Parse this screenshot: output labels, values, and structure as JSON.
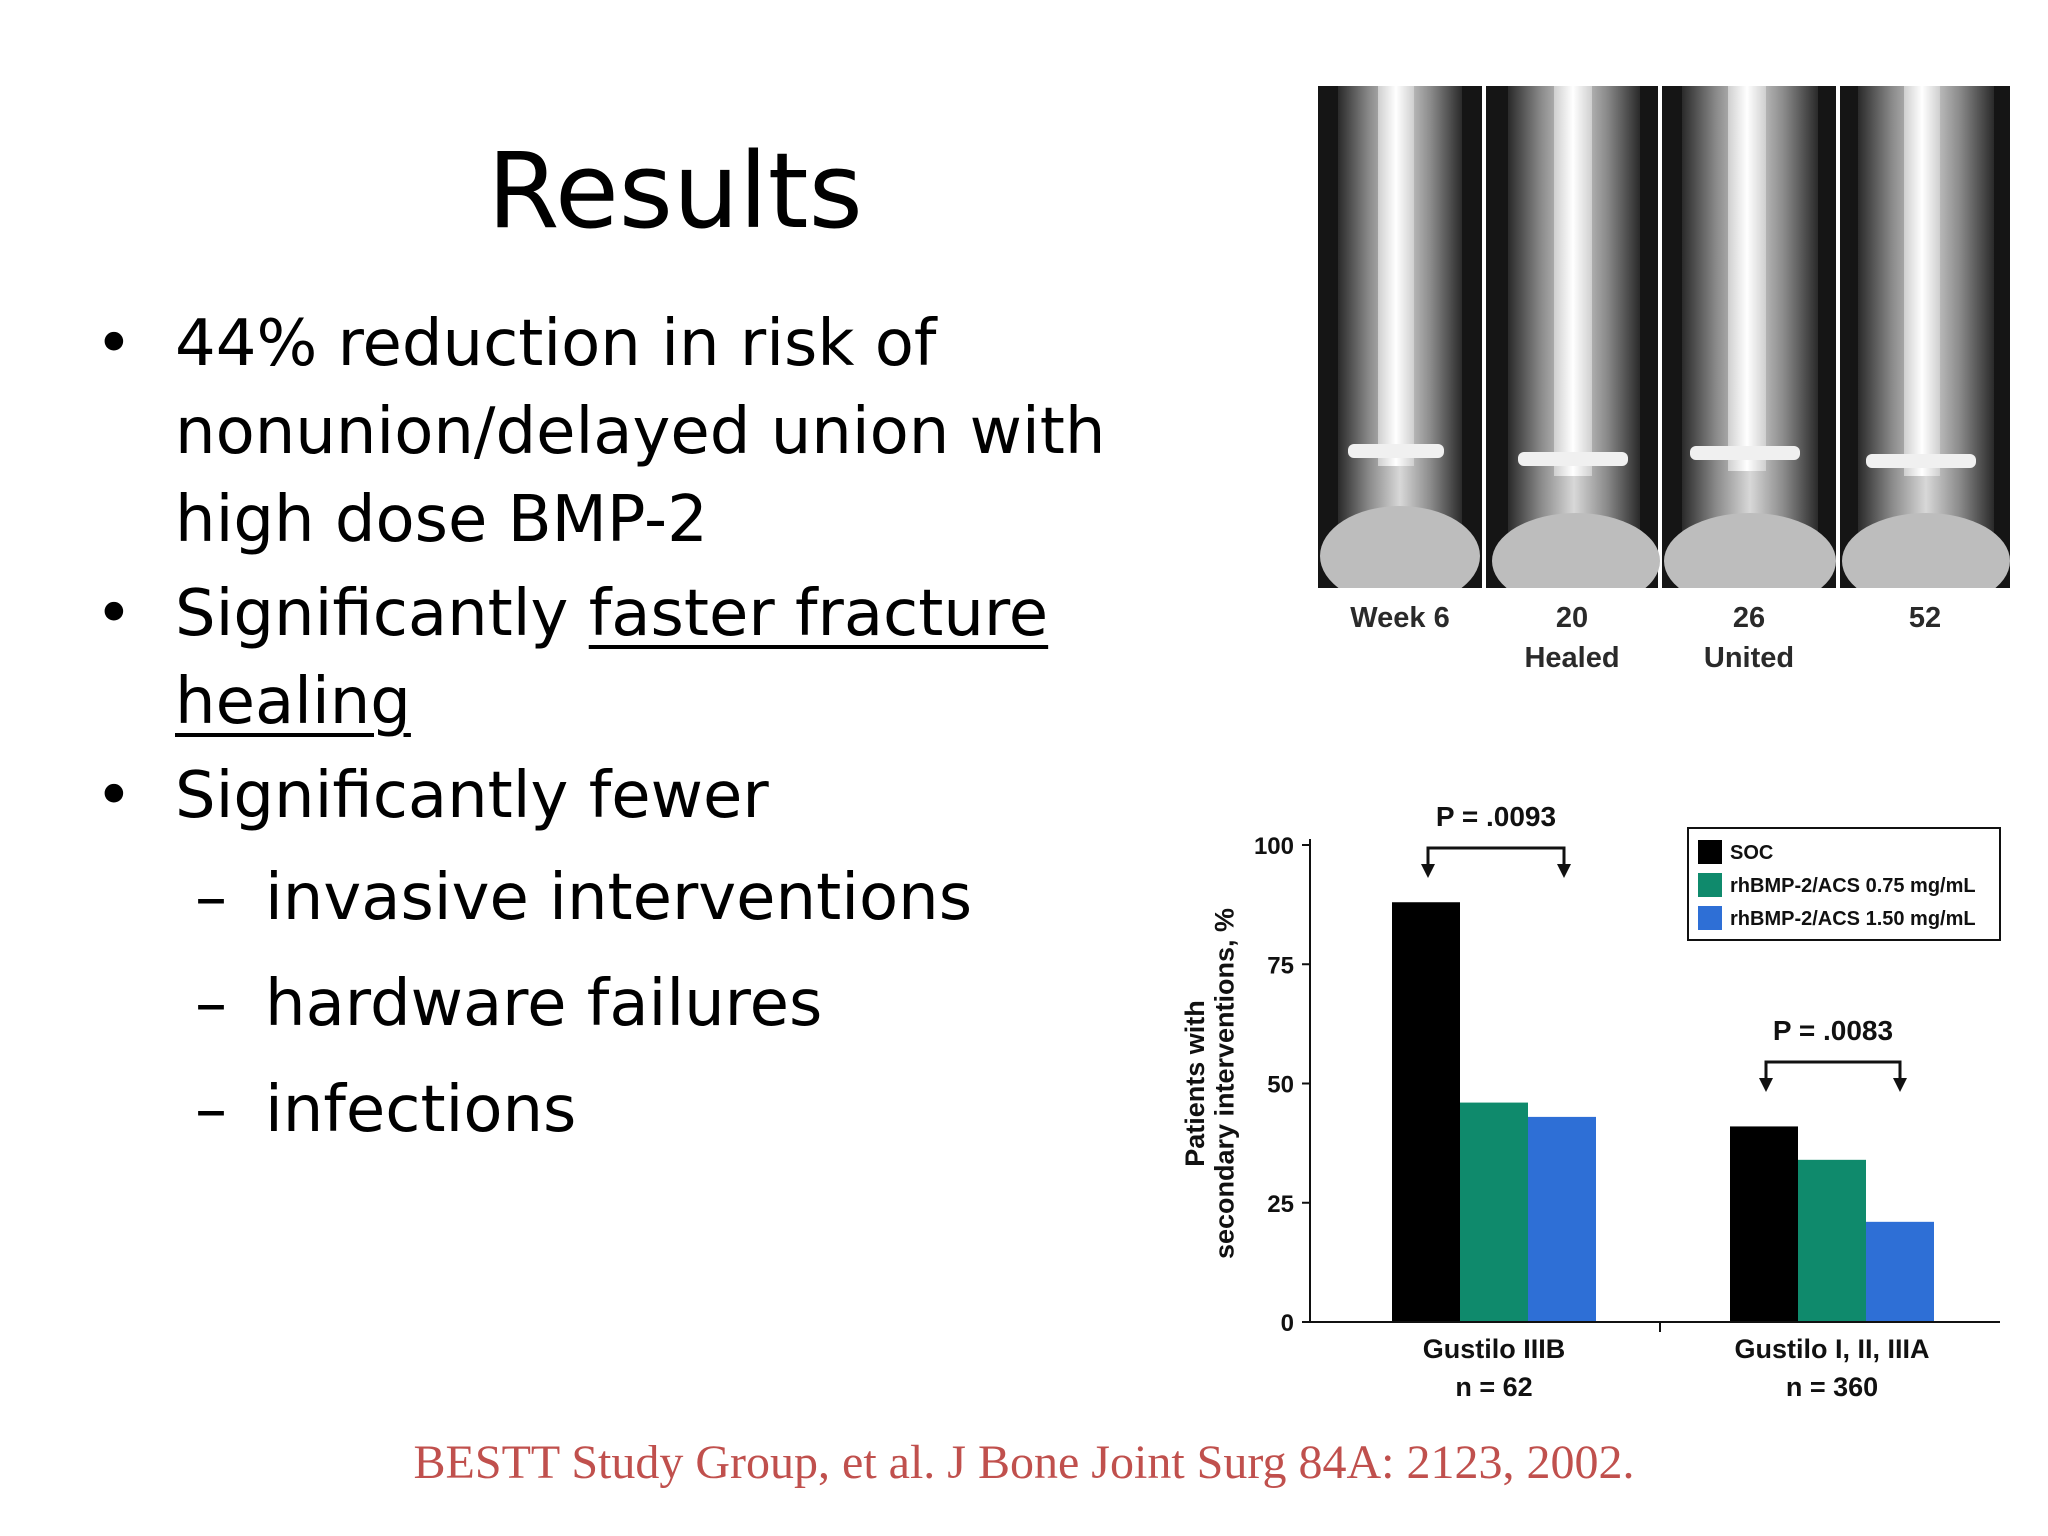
{
  "slide": {
    "title": "Results",
    "bullets": [
      {
        "lines": [
          "44% reduction in risk of",
          "nonunion/delayed union with",
          "high dose BMP-2"
        ]
      },
      {
        "prefix": "Significantly ",
        "underlined_1": "faster fracture",
        "underlined_2": "healing"
      },
      {
        "text": "Significantly fewer",
        "subs": [
          "invasive interventions",
          "hardware failures",
          "infections"
        ]
      }
    ],
    "citation": "BESTT Study Group, et al. J Bone Joint Surg 84A: 2123, 2002."
  },
  "xray": {
    "labels": [
      {
        "top": "Week 6",
        "bottom": ""
      },
      {
        "top": "20",
        "bottom": "Healed"
      },
      {
        "top": "26",
        "bottom": "United"
      },
      {
        "top": "52",
        "bottom": ""
      }
    ]
  },
  "chart_data": {
    "type": "bar",
    "ylabel": "Patients with secondary interventions, %",
    "ylim": [
      0,
      100
    ],
    "yticks": [
      "0",
      "25",
      "50",
      "75",
      "100"
    ],
    "categories": [
      {
        "name": "Gustilo IIIB",
        "n": "n = 62"
      },
      {
        "name": "Gustilo I, II, IIIA",
        "n": "n = 360"
      }
    ],
    "series": [
      {
        "name": "SOC",
        "color": "#000000",
        "values": [
          88,
          41
        ]
      },
      {
        "name": "rhBMP-2/ACS 0.75 mg/mL",
        "color": "#0f8a6c",
        "values": [
          46,
          34
        ]
      },
      {
        "name": "rhBMP-2/ACS 1.50 mg/mL",
        "color": "#2e6fd6",
        "values": [
          43,
          21
        ]
      }
    ],
    "annotations": [
      "P = .0093",
      "P = .0083"
    ],
    "legend_position": "top-right",
    "grid": false
  }
}
